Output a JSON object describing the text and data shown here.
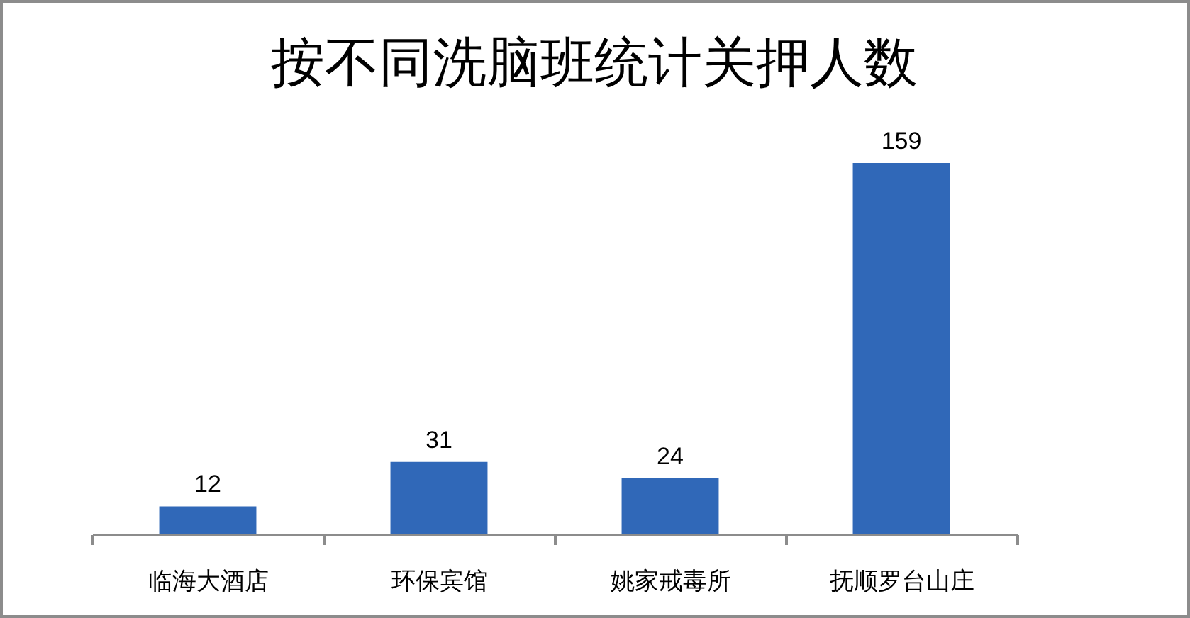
{
  "chart_data": {
    "type": "bar",
    "title": "按不同洗脑班统计关押人数",
    "categories": [
      "临海大酒店",
      "环保宾馆",
      "姚家戒毒所",
      "抚顺罗台山庄"
    ],
    "values": [
      12,
      31,
      24,
      159
    ],
    "color": "#3068b8",
    "data_labels": true,
    "tick_labels": "x"
  }
}
